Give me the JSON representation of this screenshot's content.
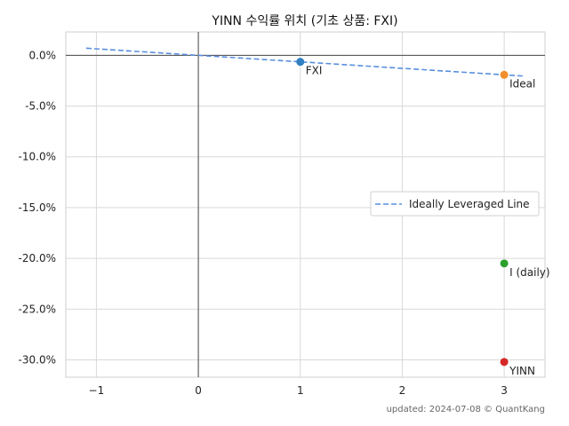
{
  "chart_data": {
    "type": "scatter",
    "title": "YINN 수익률 위치 (기초 상품: FXI)",
    "xlabel": "",
    "ylabel": "",
    "xlim": [
      -1.3,
      3.4
    ],
    "ylim": [
      -31.7,
      2.3
    ],
    "x_ticks": [
      -1,
      0,
      1,
      2,
      3
    ],
    "x_tick_labels": [
      "−1",
      "0",
      "1",
      "2",
      "3"
    ],
    "y_ticks": [
      0,
      -5,
      -10,
      -15,
      -20,
      -25,
      -30
    ],
    "y_tick_labels": [
      "0.0%",
      "-5.0%",
      "-10.0%",
      "-15.0%",
      "-20.0%",
      "-25.0%",
      "-30.0%"
    ],
    "grid": true,
    "legend_position": "center-right",
    "line": {
      "name": "Ideally Leveraged Line",
      "style": "dashed",
      "color": "#5b8fe0",
      "x": [
        -1.1,
        3.2
      ],
      "y": [
        0.7,
        -2.05
      ]
    },
    "points": [
      {
        "label": "FXI",
        "x": 1,
        "y": -0.64,
        "color": "#2f7fc1"
      },
      {
        "label": "Ideal",
        "x": 3,
        "y": -1.92,
        "color": "#f28e2b"
      },
      {
        "label": "I (daily)",
        "x": 3,
        "y": -20.5,
        "color": "#2ca02c"
      },
      {
        "label": "YINN",
        "x": 3,
        "y": -30.2,
        "color": "#d62728"
      }
    ]
  },
  "footer": {
    "text": "updated: 2024-07-08 © QuantKang"
  }
}
